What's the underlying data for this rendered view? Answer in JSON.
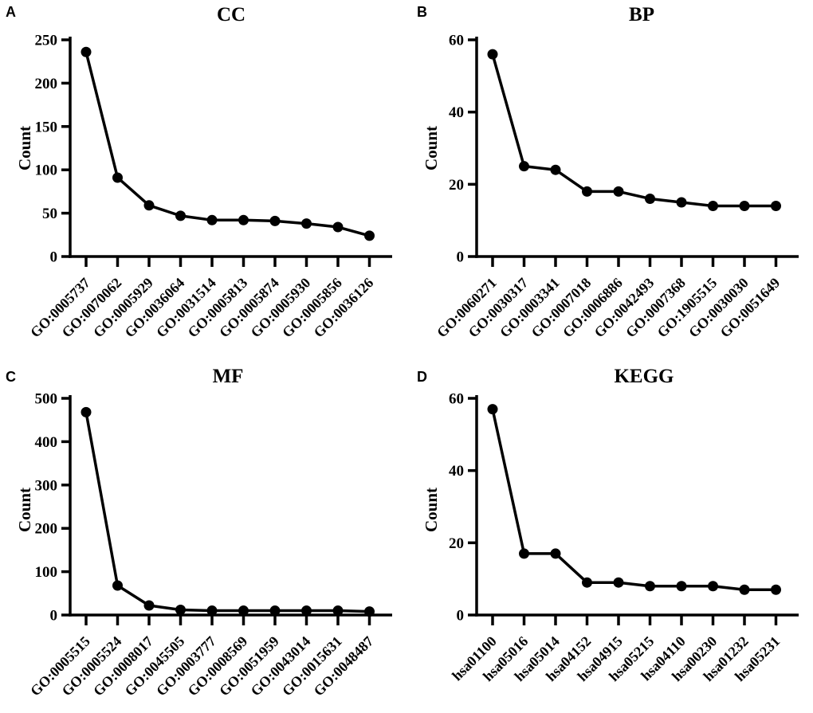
{
  "figure": {
    "background_color": "#ffffff",
    "ink_color": "#000000",
    "marker_style": "filled-circle"
  },
  "chart_data": [
    {
      "type": "line",
      "panel_letter": "A",
      "title": "CC",
      "xlabel": "",
      "ylabel": "Count",
      "ylim": [
        0,
        250
      ],
      "yticks": [
        0,
        50,
        100,
        150,
        200,
        250
      ],
      "grid": false,
      "legend": "none",
      "categories": [
        "GO:0005737",
        "GO:0070062",
        "GO:0005929",
        "GO:0036064",
        "GO:0031514",
        "GO:0005813",
        "GO:0005874",
        "GO:0005930",
        "GO:0005856",
        "GO:0036126"
      ],
      "values": [
        236,
        91,
        59,
        47,
        42,
        42,
        41,
        38,
        34,
        24
      ]
    },
    {
      "type": "line",
      "panel_letter": "B",
      "title": "BP",
      "xlabel": "",
      "ylabel": "Count",
      "ylim": [
        0,
        60
      ],
      "yticks": [
        0,
        20,
        40,
        60
      ],
      "grid": false,
      "legend": "none",
      "categories": [
        "GO:0060271",
        "GO:0030317",
        "GO:0003341",
        "GO:0007018",
        "GO:0006886",
        "GO:0042493",
        "GO:0007368",
        "GO:1905515",
        "GO:0030030",
        "GO:0051649"
      ],
      "values": [
        56,
        25,
        24,
        18,
        18,
        16,
        15,
        14,
        14,
        14
      ]
    },
    {
      "type": "line",
      "panel_letter": "C",
      "title": "MF",
      "xlabel": "",
      "ylabel": "Count",
      "ylim": [
        0,
        500
      ],
      "yticks": [
        0,
        100,
        200,
        300,
        400,
        500
      ],
      "grid": false,
      "legend": "none",
      "categories": [
        "GO:0005515",
        "GO:0005524",
        "GO:0008017",
        "GO:0045505",
        "GO:0003777",
        "GO:0008569",
        "GO:0051959",
        "GO:0043014",
        "GO:0015631",
        "GO:0048487"
      ],
      "values": [
        468,
        68,
        22,
        12,
        10,
        10,
        10,
        10,
        10,
        8
      ]
    },
    {
      "type": "line",
      "panel_letter": "D",
      "title": "KEGG",
      "xlabel": "",
      "ylabel": "Count",
      "ylim": [
        0,
        60
      ],
      "yticks": [
        0,
        20,
        40,
        60
      ],
      "grid": false,
      "legend": "none",
      "categories": [
        "hsa01100",
        "hsa05016",
        "hsa05014",
        "hsa04152",
        "hsa04915",
        "hsa05215",
        "hsa04110",
        "hsa00230",
        "hsa01232",
        "hsa05231"
      ],
      "values": [
        57,
        17,
        17,
        9,
        9,
        8,
        8,
        8,
        7,
        7
      ]
    }
  ]
}
